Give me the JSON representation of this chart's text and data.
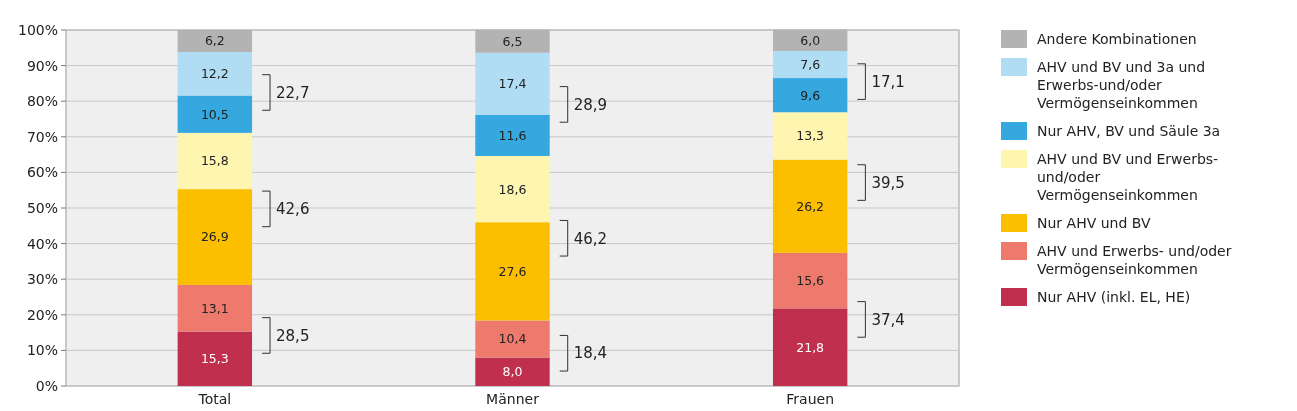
{
  "chart_data": {
    "type": "bar",
    "stacked": true,
    "categories": [
      "Total",
      "Männer",
      "Frauen"
    ],
    "series": [
      {
        "name": "Nur AHV (inkl. EL, HE)",
        "color": "#c0304e",
        "values": [
          15.3,
          8.0,
          21.8
        ],
        "value_labels": [
          "15,3",
          "8,0",
          "21,8"
        ]
      },
      {
        "name": "AHV und Erwerbs- und/oder Vermögenseinkommen",
        "color": "#ee7a6e",
        "values": [
          13.1,
          10.4,
          15.6
        ],
        "value_labels": [
          "13,1",
          "10,4",
          "15,6"
        ]
      },
      {
        "name": "Nur AHV und BV",
        "color": "#fbbf00",
        "values": [
          26.9,
          27.6,
          26.2
        ],
        "value_labels": [
          "26,9",
          "27,6",
          "26,2"
        ]
      },
      {
        "name": "AHV und BV und Erwerbs- und/oder Vermögenseinkommen",
        "color": "#fef5b0",
        "values": [
          15.8,
          18.6,
          13.3
        ],
        "value_labels": [
          "15,8",
          "18,6",
          "13,3"
        ]
      },
      {
        "name": "Nur AHV, BV und Säule 3a",
        "color": "#35a8e0",
        "values": [
          10.5,
          11.6,
          9.6
        ],
        "value_labels": [
          "10,5",
          "11,6",
          "9,6"
        ]
      },
      {
        "name": "AHV und BV und 3a und Erwerbs-und/oder Vermögenseinkommen",
        "color": "#b0dcf4",
        "values": [
          12.2,
          17.4,
          7.6
        ],
        "value_labels": [
          "12,2",
          "17,4",
          "7,6"
        ]
      },
      {
        "name": "Andere Kombinationen",
        "color": "#b3b3b3",
        "values": [
          6.2,
          6.5,
          6.0
        ],
        "value_labels": [
          "6,2",
          "6,5",
          "6,0"
        ]
      }
    ],
    "ylim": [
      0,
      100
    ],
    "yticks": [
      {
        "value": 0,
        "label": "0%"
      },
      {
        "value": 10,
        "label": "10%"
      },
      {
        "value": 20,
        "label": "20%"
      },
      {
        "value": 30,
        "label": "30%"
      },
      {
        "value": 40,
        "label": "40%"
      },
      {
        "value": 50,
        "label": "50%"
      },
      {
        "value": 60,
        "label": "60%"
      },
      {
        "value": 70,
        "label": "70%"
      },
      {
        "value": 80,
        "label": "80%"
      },
      {
        "value": 90,
        "label": "90%"
      },
      {
        "value": 100,
        "label": "100%"
      }
    ],
    "grid": "y",
    "legend": "right",
    "annotations": [
      "28,5",
      "42,6",
      "22,7",
      "18,4",
      "46,2",
      "28,9",
      "37,4",
      "39,5",
      "17,1"
    ]
  }
}
